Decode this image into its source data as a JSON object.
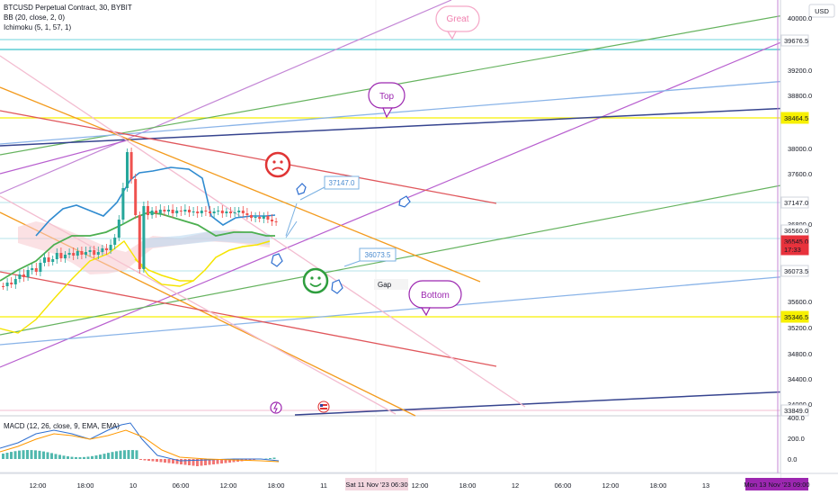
{
  "legend": {
    "symbol": "BTCUSD Perpetual Contract, 30, BYBIT",
    "bb": "BB (20, close, 2, 0)",
    "ichimoku": "Ichimoku (5, 1, 57, 1)",
    "macd": "MACD (12, 26, close, 9, EMA, EMA)"
  },
  "currency": "USD",
  "price_ticks": [
    "40000.0",
    "39200.0",
    "38800.0",
    "38000.0",
    "37600.0",
    "36800.0",
    "35600.0",
    "35200.0",
    "34800.0",
    "34400.0",
    "34000.0"
  ],
  "price_flags": [
    {
      "text": "39676.5",
      "color": "#ffffff",
      "text_color": "#131722"
    },
    {
      "text": "38464.5",
      "color": "#f7f000",
      "text_color": "#131722"
    },
    {
      "text": "37147.0",
      "color": "#ffffff",
      "text_color": "#131722"
    },
    {
      "text": "36560.0",
      "color": "#ffffff",
      "text_color": "#131722"
    },
    {
      "text": "36545.0",
      "color": "#e8323c",
      "text_color": "#ffffff"
    },
    {
      "text": "17:33",
      "color": "#e8323c",
      "text_color": "#ffffff"
    },
    {
      "text": "36073.5",
      "color": "#ffffff",
      "text_color": "#131722"
    },
    {
      "text": "35346.5",
      "color": "#f7f000",
      "text_color": "#131722"
    },
    {
      "text": "33849.0",
      "color": "#ffffff",
      "text_color": "#131722"
    }
  ],
  "macd_ticks": [
    "400.0",
    "200.0",
    "0.0"
  ],
  "time_ticks": [
    "12:00",
    "18:00",
    "10",
    "06:00",
    "12:00",
    "18:00",
    "11",
    "12:00",
    "18:00",
    "12",
    "06:00",
    "12:00",
    "18:00",
    "13",
    "06:00"
  ],
  "time_highlights": [
    {
      "text": "Sat 11 Nov '23   06:30",
      "color": "#f3d6df",
      "text_color": "#131722"
    },
    {
      "text": "Mon 13 Nov '23   09:00",
      "color": "#9c27b0",
      "text_color": "#ffffff"
    }
  ],
  "annotations": {
    "great": "Great",
    "top": "Top",
    "bottom": "Bottom",
    "label_37147": "37147.0",
    "label_36073": "36073.5",
    "gap": "Gap"
  },
  "colors": {
    "bull": "#26a69a",
    "bear": "#ef5350",
    "bb_basis": "#4caf50",
    "bb_band": "#2196f3",
    "ichimoku_line": "#f5e400",
    "purple": "#b85fcf",
    "green": "#66b35f",
    "blue_light": "#8ab4e8",
    "navy": "#36448f",
    "orange": "#f39b1e",
    "red": "#e0575c",
    "pink_light": "#f3bcd0",
    "cyan": "#70d6de"
  }
}
